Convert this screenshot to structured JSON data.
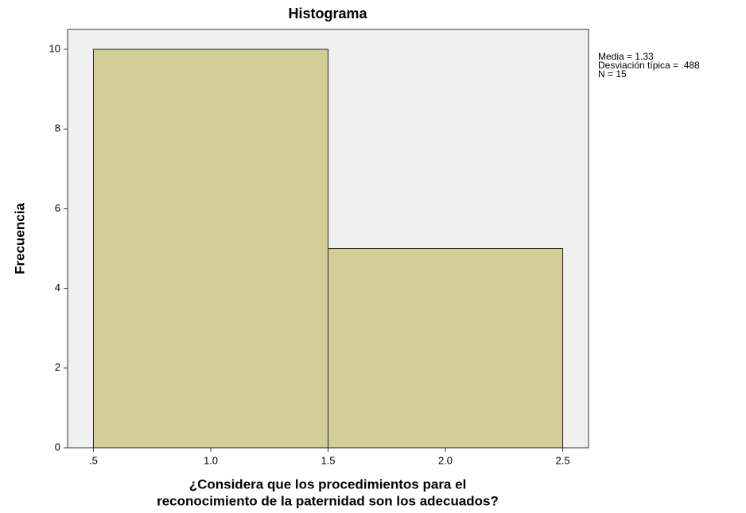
{
  "chart_data": {
    "type": "histogram",
    "title": "Histograma",
    "x_label": [
      "¿Considera que los procedimientos para el",
      "reconocimiento de la paternidad son los adecuados?"
    ],
    "y_label": "Frecuencia",
    "bins": [
      0.5,
      1.5,
      2.5
    ],
    "counts": [
      10,
      5
    ],
    "color": "#d3ce97",
    "xlim": [
      0.39,
      2.61
    ],
    "ylim": [
      0,
      10.5
    ],
    "xticks": [
      {
        "value": 0.5,
        "label": ".5"
      },
      {
        "value": 1,
        "label": "1.0"
      },
      1.5,
      {
        "value": 2,
        "label": "2.0"
      },
      2.5
    ],
    "yticks": [
      0,
      2,
      4,
      6,
      8,
      10
    ],
    "annotations": [
      "Media = 1.33",
      "Desviación típica = .488",
      "N = 15"
    ]
  }
}
